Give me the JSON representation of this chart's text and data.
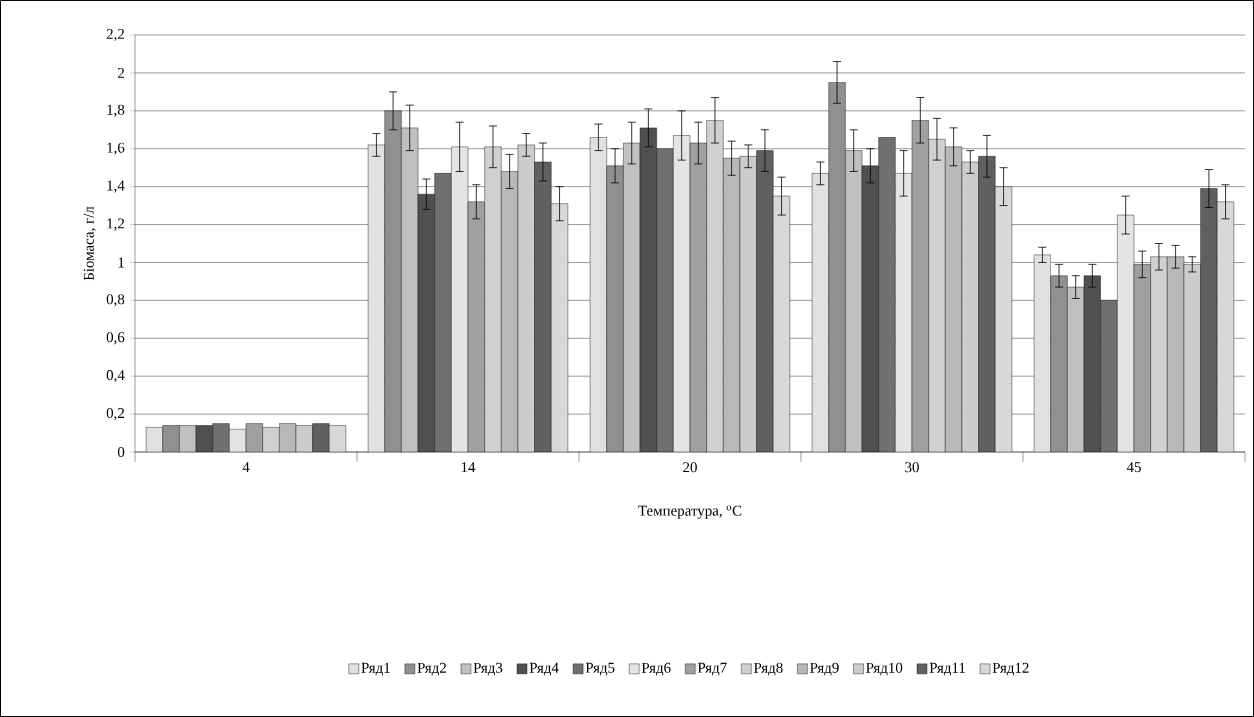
{
  "chart_data": {
    "type": "bar",
    "xlabel": "Температура, $^{o}$C",
    "ylabel": "Біомаса, г/л",
    "categories": [
      "4",
      "14",
      "20",
      "30",
      "45"
    ],
    "ylim": [
      0,
      2.2
    ],
    "yticks": [
      0,
      {
        "value": 0.2,
        "label": "0,2"
      },
      {
        "value": 0.4,
        "label": "0,4"
      },
      {
        "value": 0.6,
        "label": "0,6"
      },
      {
        "value": 0.8,
        "label": "0,8"
      },
      1,
      {
        "value": 1.2,
        "label": "1,2"
      },
      {
        "value": 1.4,
        "label": "1,4"
      },
      {
        "value": 1.6,
        "label": "1,6"
      },
      {
        "value": 1.8,
        "label": "1,8"
      },
      2,
      {
        "value": 2.2,
        "label": "2,2"
      }
    ],
    "grid": "y",
    "legend": "bottom",
    "series": [
      {
        "name": "Ряд1",
        "color": "#e0e0e0",
        "values": [
          0.13,
          1.62,
          1.66,
          1.47,
          1.04
        ],
        "errors": [
          null,
          0.06,
          0.07,
          0.06,
          0.04
        ]
      },
      {
        "name": "Ряд2",
        "color": "#909090",
        "values": [
          0.14,
          1.8,
          1.51,
          1.95,
          0.93
        ],
        "errors": [
          null,
          0.1,
          0.09,
          0.11,
          0.06
        ]
      },
      {
        "name": "Ряд3",
        "color": "#c0c0c0",
        "values": [
          0.14,
          1.71,
          1.63,
          1.59,
          0.87
        ],
        "errors": [
          null,
          0.12,
          0.11,
          0.11,
          0.06
        ]
      },
      {
        "name": "Ряд4",
        "color": "#505050",
        "values": [
          0.14,
          1.36,
          1.71,
          1.51,
          0.93
        ],
        "errors": [
          null,
          0.08,
          0.1,
          0.09,
          0.06
        ]
      },
      {
        "name": "Ряд5",
        "color": "#707070",
        "values": [
          0.15,
          1.47,
          1.6,
          1.66,
          0.8
        ]
      },
      {
        "name": "Ряд6",
        "color": "#e4e4e4",
        "values": [
          0.12,
          1.61,
          1.67,
          1.47,
          1.25
        ],
        "errors": [
          null,
          0.13,
          0.13,
          0.12,
          0.1
        ]
      },
      {
        "name": "Ряд7",
        "color": "#a0a0a0",
        "values": [
          0.15,
          1.32,
          1.63,
          1.75,
          0.99
        ],
        "errors": [
          null,
          0.09,
          0.11,
          0.12,
          0.07
        ]
      },
      {
        "name": "Ряд8",
        "color": "#d0d0d0",
        "values": [
          0.13,
          1.61,
          1.75,
          1.65,
          1.03
        ],
        "errors": [
          null,
          0.11,
          0.12,
          0.11,
          0.07
        ]
      },
      {
        "name": "Ряд9",
        "color": "#b8b8b8",
        "values": [
          0.15,
          1.48,
          1.55,
          1.61,
          1.03
        ],
        "errors": [
          null,
          0.09,
          0.09,
          0.1,
          0.06
        ]
      },
      {
        "name": "Ряд10",
        "color": "#cccccc",
        "values": [
          0.14,
          1.62,
          1.56,
          1.53,
          0.99
        ],
        "errors": [
          null,
          0.06,
          0.06,
          0.06,
          0.04
        ]
      },
      {
        "name": "Ряд11",
        "color": "#606060",
        "values": [
          0.15,
          1.53,
          1.59,
          1.56,
          1.39
        ],
        "errors": [
          null,
          0.1,
          0.11,
          0.11,
          0.1
        ]
      },
      {
        "name": "Ряд12",
        "color": "#d8d8d8",
        "values": [
          0.14,
          1.31,
          1.35,
          1.4,
          1.32
        ],
        "errors": [
          null,
          0.09,
          0.1,
          0.1,
          0.09
        ]
      }
    ]
  }
}
